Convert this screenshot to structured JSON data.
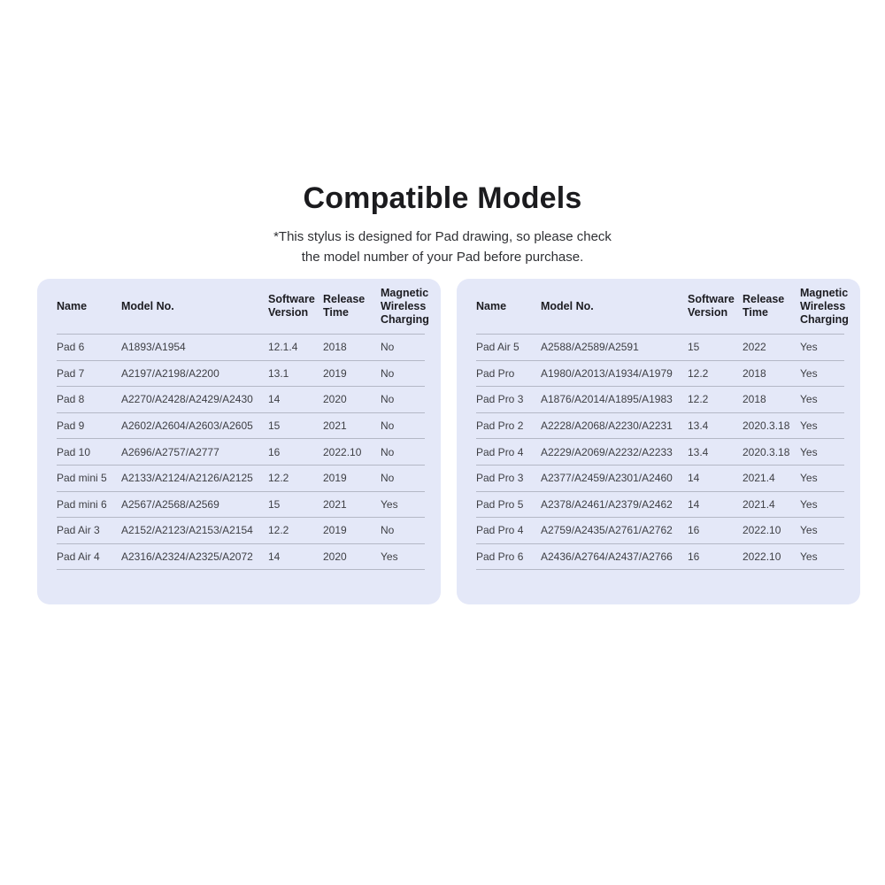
{
  "page": {
    "title": "Compatible Models",
    "subtitle_line1": "*This stylus is designed for Pad drawing, so please check",
    "subtitle_line2": "the model number of your Pad before purchase."
  },
  "colors": {
    "card_bg": "#e4e8f8",
    "divider": "#b4b8c6",
    "title_text": "#1b1b1e",
    "body_text": "#3e3f44"
  },
  "tables": [
    {
      "headers": [
        "Name",
        "Model No.",
        "Software\nVersion",
        "Release\nTime",
        "Magnetic\nWireless\nCharging"
      ],
      "rows": [
        [
          "Pad 6",
          "A1893/A1954",
          "12.1.4",
          "2018",
          "No"
        ],
        [
          "Pad 7",
          "A2197/A2198/A2200",
          "13.1",
          "2019",
          "No"
        ],
        [
          "Pad 8",
          "A2270/A2428/A2429/A2430",
          "14",
          "2020",
          "No"
        ],
        [
          "Pad 9",
          "A2602/A2604/A2603/A2605",
          "15",
          "2021",
          "No"
        ],
        [
          "Pad 10",
          "A2696/A2757/A2777",
          "16",
          "2022.10",
          "No"
        ],
        [
          "Pad mini 5",
          "A2133/A2124/A2126/A2125",
          "12.2",
          "2019",
          "No"
        ],
        [
          "Pad mini 6",
          "A2567/A2568/A2569",
          "15",
          "2021",
          "Yes"
        ],
        [
          "Pad Air 3",
          "A2152/A2123/A2153/A2154",
          "12.2",
          "2019",
          "No"
        ],
        [
          "Pad Air 4",
          "A2316/A2324/A2325/A2072",
          "14",
          "2020",
          "Yes"
        ]
      ]
    },
    {
      "headers": [
        "Name",
        "Model No.",
        "Software\nVersion",
        "Release\nTime",
        "Magnetic\nWireless\nCharging"
      ],
      "rows": [
        [
          "Pad Air 5",
          "A2588/A2589/A2591",
          "15",
          "2022",
          "Yes"
        ],
        [
          "Pad Pro",
          "A1980/A2013/A1934/A1979",
          "12.2",
          "2018",
          "Yes"
        ],
        [
          "Pad Pro 3",
          "A1876/A2014/A1895/A1983",
          "12.2",
          "2018",
          "Yes"
        ],
        [
          "Pad Pro 2",
          "A2228/A2068/A2230/A2231",
          "13.4",
          "2020.3.18",
          "Yes"
        ],
        [
          "Pad Pro 4",
          "A2229/A2069/A2232/A2233",
          "13.4",
          "2020.3.18",
          "Yes"
        ],
        [
          "Pad Pro 3",
          "A2377/A2459/A2301/A2460",
          "14",
          "2021.4",
          "Yes"
        ],
        [
          "Pad Pro 5",
          "A2378/A2461/A2379/A2462",
          "14",
          "2021.4",
          "Yes"
        ],
        [
          "Pad Pro 4",
          "A2759/A2435/A2761/A2762",
          "16",
          "2022.10",
          "Yes"
        ],
        [
          "Pad Pro 6",
          "A2436/A2764/A2437/A2766",
          "16",
          "2022.10",
          "Yes"
        ]
      ]
    }
  ]
}
